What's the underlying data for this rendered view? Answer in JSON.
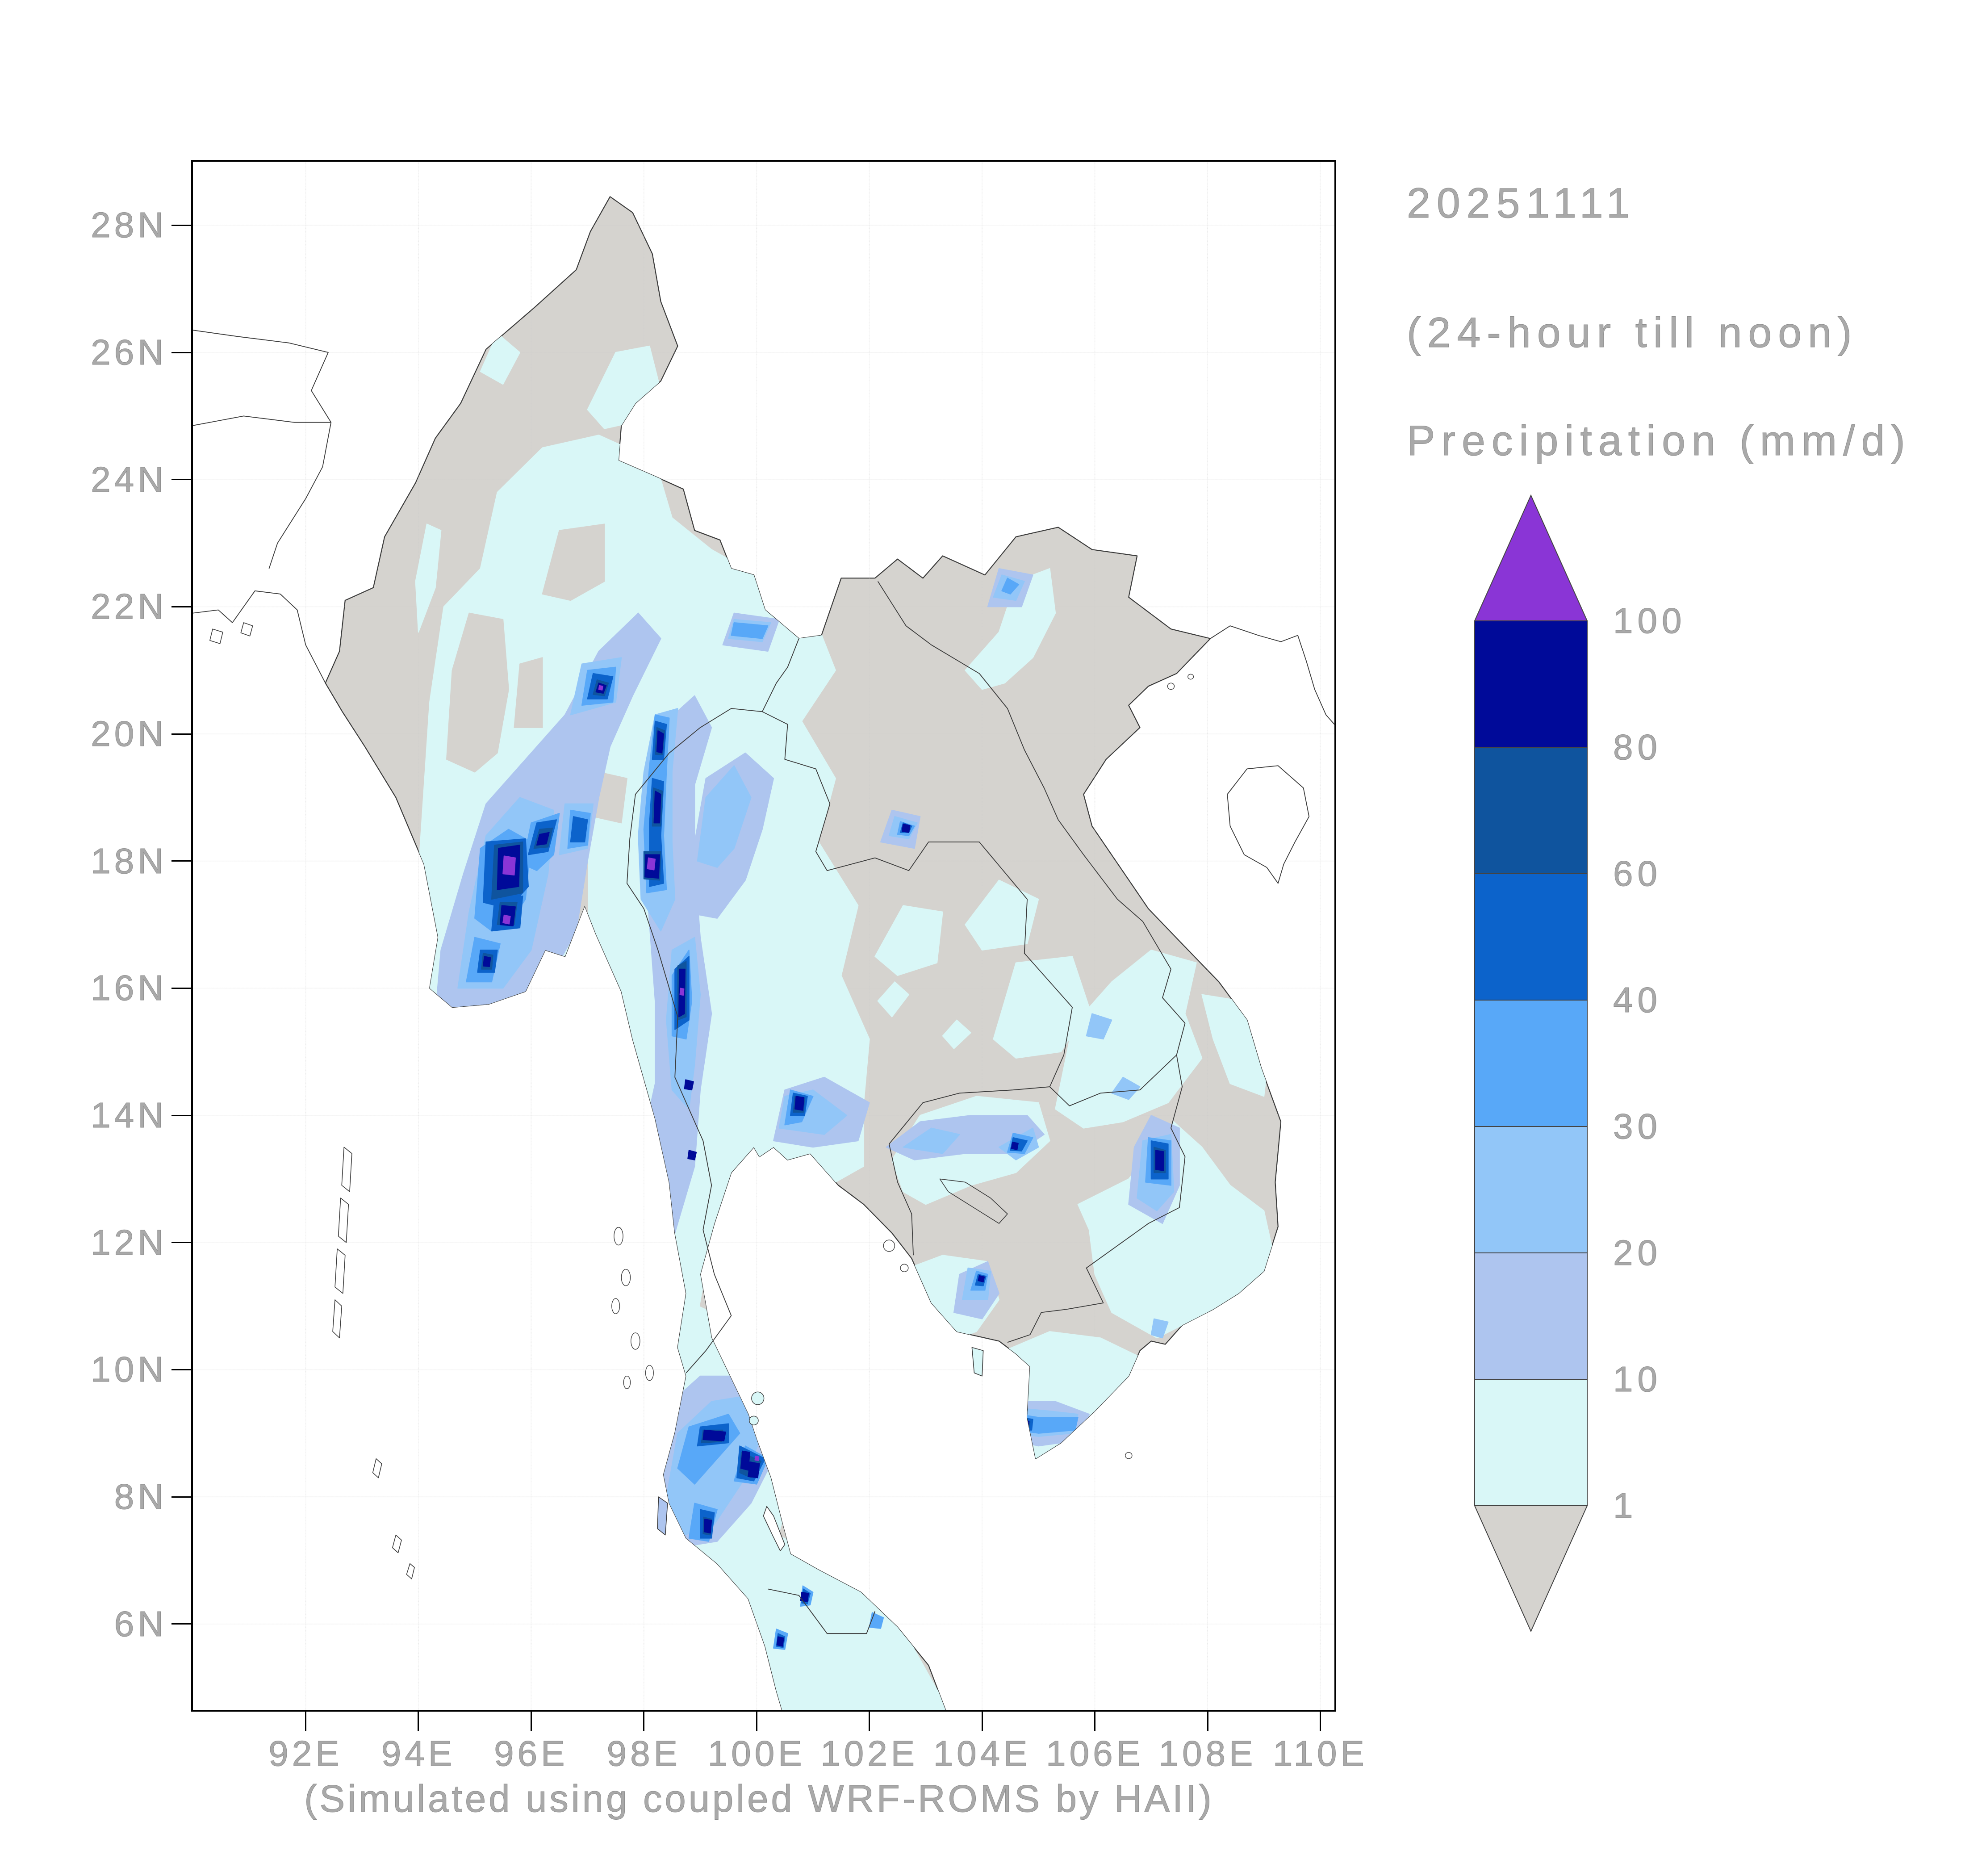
{
  "header": {
    "date": "20251111",
    "run_window": "(24-hour till noon)",
    "legend_title": "Precipitation (mm/d)"
  },
  "caption": "(Simulated using coupled WRF-ROMS by HAII)",
  "axes": {
    "x_tick_labels": [
      "92E",
      "94E",
      "96E",
      "98E",
      "100E",
      "102E",
      "104E",
      "106E",
      "108E",
      "110E"
    ],
    "y_tick_labels": [
      "28N",
      "26N",
      "24N",
      "22N",
      "20N",
      "18N",
      "16N",
      "14N",
      "12N",
      "10N",
      "8N",
      "6N"
    ]
  },
  "colorbar": {
    "labels": [
      "100",
      "80",
      "60",
      "40",
      "30",
      "20",
      "10",
      "1"
    ],
    "levels_mm_per_day": [
      100,
      80,
      60,
      40,
      30,
      20,
      10,
      1
    ],
    "segment_colors_top_to_bottom": [
      "#000A99",
      "#0F549E",
      "#0C63CB",
      "#58A8F8",
      "#92C6F8",
      "#AEC5EF",
      "#D9F7F7"
    ],
    "over_color": "#8A35D6",
    "under_color": "#D5D3CF"
  },
  "map_colors": {
    "sea": "#ffffff",
    "land_below_1mm": "#D5D3CF",
    "coastline": "#3A3A3A",
    "gridline": "#C9C9C9",
    "p_1_10": "#D9F7F7",
    "p_10_20": "#AEC5EF",
    "p_20_30": "#92C6F8",
    "p_30_40": "#58A8F8",
    "p_40_60": "#0C63CB",
    "p_60_80": "#0F549E",
    "p_80_100": "#000A99",
    "p_over_100": "#8A35D6"
  },
  "chart_data": {
    "type": "heatmap",
    "title": "Precipitation (mm/d)",
    "date": "20251111",
    "period": "(24-hour till noon)",
    "source_note": "(Simulated using coupled WRF-ROMS by HAII)",
    "region": {
      "lon_min": 90.0,
      "lon_max": 110.25,
      "lat_min": 4.65,
      "lat_max": 29.0
    },
    "contour_levels_mm_per_day": [
      1,
      10,
      20,
      30,
      40,
      60,
      80,
      100
    ],
    "legend_position": "right",
    "grid": "dotted 2-degree graticule",
    "over_100_maxima_lon_lat": [
      [
        95.6,
        17.95
      ],
      [
        95.55,
        17.1
      ],
      [
        98.1,
        17.95
      ],
      [
        97.2,
        20.75
      ],
      [
        98.65,
        16.0
      ],
      [
        100.0,
        8.6
      ]
    ],
    "heavy_rain_areas": [
      "western Myanmar 94.5-96.5E 16-19N (40-100+ mm/d cores)",
      "Thai-Myanmar border band along 98.2E 17.5-20.3N",
      "98.6E 15.4-16.5N streak",
      "southern peninsula 98.9-100.2E 7.3-9.1N",
      "100.7E 14.2N streak NE of Bangkok",
      "107.1E 13.0-13.6N streak (E Cambodia)",
      "small maxima at 102.6E 18.5N, 104.6E 13.5N, 104.0E 11.4N, 104.8E 9.15N"
    ]
  }
}
